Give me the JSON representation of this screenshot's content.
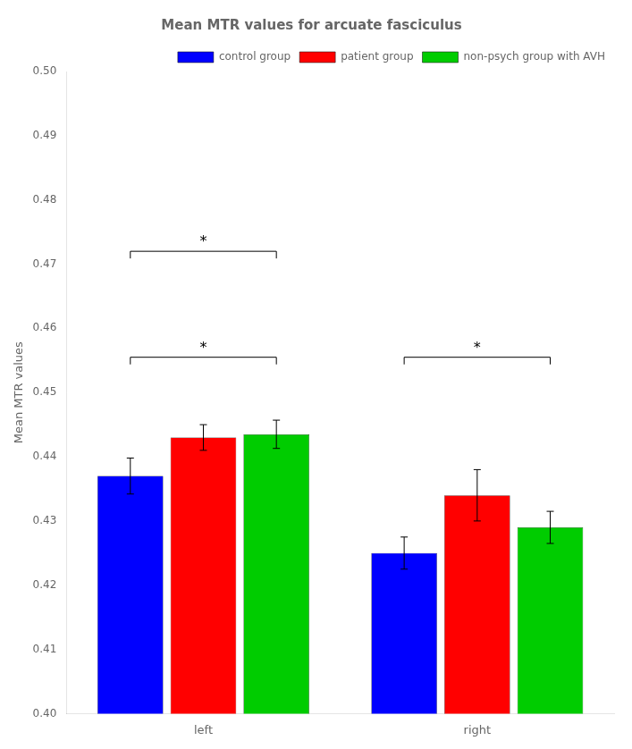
{
  "chart_data": {
    "type": "bar",
    "title": "Mean MTR values for arcuate fasciculus",
    "ylabel": "Mean MTR values",
    "categories": [
      "left",
      "right"
    ],
    "series": [
      {
        "name": "control group",
        "color": "#0000FF",
        "values": [
          0.437,
          0.425
        ],
        "errors": [
          0.0028,
          0.0025
        ]
      },
      {
        "name": "patient group",
        "color": "#FF0000",
        "values": [
          0.443,
          0.434
        ],
        "errors": [
          0.002,
          0.004
        ]
      },
      {
        "name": "non-psych group with AVH",
        "color": "#00CC00",
        "values": [
          0.4435,
          0.429
        ],
        "errors": [
          0.0022,
          0.0025
        ]
      }
    ],
    "ylim": [
      0.4,
      0.5
    ],
    "yticks": [
      {
        "value": 0.4,
        "label": "0.40"
      },
      {
        "value": 0.41,
        "label": "0.41"
      },
      {
        "value": 0.42,
        "label": "0.42"
      },
      {
        "value": 0.43,
        "label": "0.43"
      },
      {
        "value": 0.44,
        "label": "0.44"
      },
      {
        "value": 0.45,
        "label": "0.45"
      },
      {
        "value": 0.46,
        "label": "0.46"
      },
      {
        "value": 0.47,
        "label": "0.47"
      },
      {
        "value": 0.48,
        "label": "0.48"
      },
      {
        "value": 0.49,
        "label": "0.49"
      },
      {
        "value": 0.5,
        "label": "0.50"
      }
    ],
    "annotations": [
      {
        "text": "*",
        "category": "left",
        "from": "control group",
        "to": "non-psych group with AVH",
        "y": 0.4555
      },
      {
        "text": "*",
        "category": "left",
        "from": "control group",
        "to": "non-psych group with AVH",
        "y": 0.472
      },
      {
        "text": "*",
        "category": "right",
        "from": "control group",
        "to": "non-psych group with AVH",
        "y": 0.4555
      }
    ],
    "legend": "upper right",
    "grid": false
  }
}
